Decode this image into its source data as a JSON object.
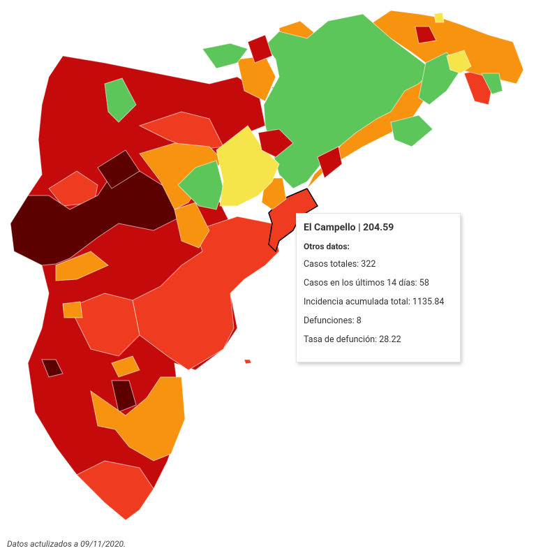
{
  "tooltip": {
    "title": "El Campello | 204.59",
    "subtitle": "Otros datos:",
    "rows": [
      "Casos totales: 322",
      "Casos en los últimos 14 días: 58",
      "Incidencia acumulada total: 1135.84",
      "Defunciones: 8",
      "Tasa de defunción: 28.22"
    ]
  },
  "footer": "Datos actulizados a 09/11/2020."
}
